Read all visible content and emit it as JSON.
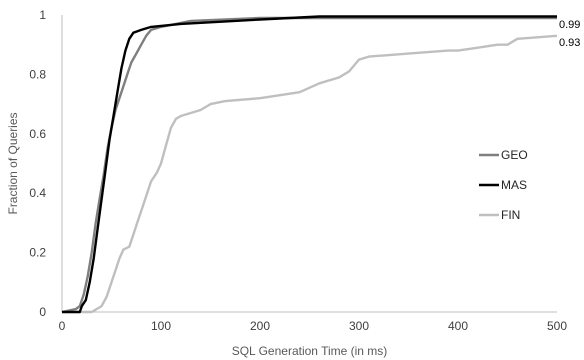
{
  "chart_data": {
    "type": "line",
    "title": "",
    "xlabel": "SQL Generation Time (in ms)",
    "ylabel": "Fraction of  Queries",
    "xlim": [
      0,
      500
    ],
    "ylim": [
      0,
      1
    ],
    "x_ticks": [
      "0",
      "100",
      "200",
      "300",
      "400",
      "500"
    ],
    "y_ticks": [
      "0",
      "0.2",
      "0.4",
      "0.6",
      "0.8",
      "1"
    ],
    "grid": false,
    "legend_position": "right",
    "series": [
      {
        "name": "GEO",
        "color": "#7f7f7f",
        "points": [
          [
            0,
            0
          ],
          [
            14,
            0.01
          ],
          [
            18,
            0.02
          ],
          [
            22,
            0.06
          ],
          [
            26,
            0.12
          ],
          [
            30,
            0.2
          ],
          [
            34,
            0.3
          ],
          [
            38,
            0.38
          ],
          [
            42,
            0.46
          ],
          [
            46,
            0.55
          ],
          [
            50,
            0.62
          ],
          [
            54,
            0.68
          ],
          [
            58,
            0.72
          ],
          [
            62,
            0.76
          ],
          [
            66,
            0.8
          ],
          [
            70,
            0.84
          ],
          [
            75,
            0.87
          ],
          [
            80,
            0.9
          ],
          [
            85,
            0.93
          ],
          [
            90,
            0.95
          ],
          [
            100,
            0.96
          ],
          [
            130,
            0.98
          ],
          [
            200,
            0.99
          ],
          [
            300,
            0.99
          ],
          [
            400,
            0.99
          ],
          [
            500,
            0.99
          ]
        ]
      },
      {
        "name": "MAS",
        "color": "#000000",
        "points": [
          [
            0,
            0
          ],
          [
            18,
            0
          ],
          [
            20,
            0.02
          ],
          [
            24,
            0.04
          ],
          [
            28,
            0.1
          ],
          [
            32,
            0.18
          ],
          [
            36,
            0.28
          ],
          [
            40,
            0.38
          ],
          [
            44,
            0.48
          ],
          [
            48,
            0.58
          ],
          [
            52,
            0.66
          ],
          [
            56,
            0.74
          ],
          [
            60,
            0.82
          ],
          [
            64,
            0.88
          ],
          [
            68,
            0.92
          ],
          [
            72,
            0.94
          ],
          [
            80,
            0.95
          ],
          [
            90,
            0.96
          ],
          [
            120,
            0.97
          ],
          [
            200,
            0.985
          ],
          [
            260,
            0.995
          ],
          [
            300,
            0.995
          ],
          [
            400,
            0.995
          ],
          [
            500,
            0.995
          ]
        ]
      },
      {
        "name": "FIN",
        "color": "#bfbfbf",
        "points": [
          [
            0,
            0
          ],
          [
            30,
            0
          ],
          [
            40,
            0.02
          ],
          [
            45,
            0.05
          ],
          [
            48,
            0.08
          ],
          [
            50,
            0.1
          ],
          [
            54,
            0.14
          ],
          [
            58,
            0.18
          ],
          [
            62,
            0.21
          ],
          [
            68,
            0.22
          ],
          [
            72,
            0.26
          ],
          [
            76,
            0.3
          ],
          [
            82,
            0.36
          ],
          [
            90,
            0.44
          ],
          [
            96,
            0.47
          ],
          [
            100,
            0.5
          ],
          [
            105,
            0.56
          ],
          [
            110,
            0.62
          ],
          [
            115,
            0.65
          ],
          [
            120,
            0.66
          ],
          [
            130,
            0.67
          ],
          [
            140,
            0.68
          ],
          [
            150,
            0.7
          ],
          [
            165,
            0.71
          ],
          [
            200,
            0.72
          ],
          [
            240,
            0.74
          ],
          [
            260,
            0.77
          ],
          [
            280,
            0.79
          ],
          [
            290,
            0.81
          ],
          [
            300,
            0.85
          ],
          [
            310,
            0.86
          ],
          [
            350,
            0.87
          ],
          [
            390,
            0.88
          ],
          [
            400,
            0.88
          ],
          [
            420,
            0.89
          ],
          [
            440,
            0.9
          ],
          [
            450,
            0.9
          ],
          [
            460,
            0.92
          ],
          [
            480,
            0.925
          ],
          [
            500,
            0.93
          ]
        ]
      }
    ],
    "annotations": [
      {
        "text": "0.99",
        "x": 500,
        "y": 0.99
      },
      {
        "text": "0.93",
        "x": 500,
        "y": 0.93
      }
    ]
  }
}
